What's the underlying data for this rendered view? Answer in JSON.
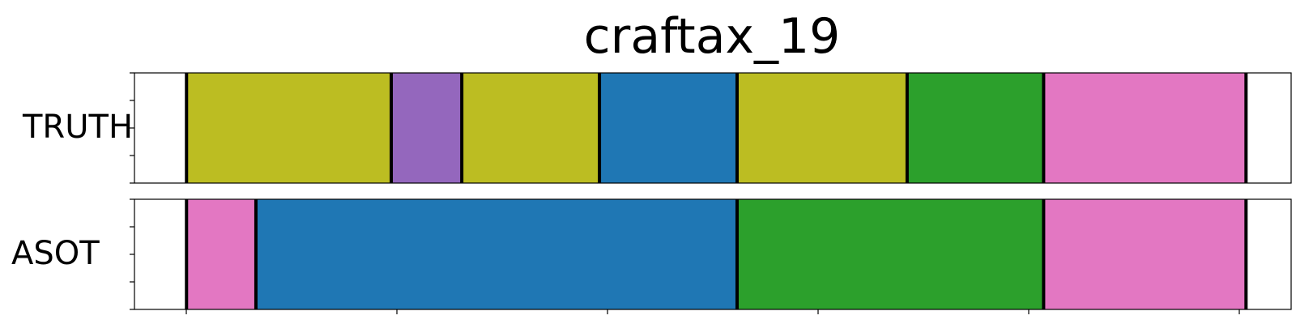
{
  "chart_data": {
    "type": "segmentation",
    "title": "craftax_19",
    "rows": [
      {
        "label": "TRUTH",
        "segments": [
          {
            "start": 0.045,
            "end": 0.222,
            "color": "#bcbd22"
          },
          {
            "start": 0.222,
            "end": 0.283,
            "color": "#9467bd"
          },
          {
            "start": 0.283,
            "end": 0.402,
            "color": "#bcbd22"
          },
          {
            "start": 0.402,
            "end": 0.521,
            "color": "#1f77b4"
          },
          {
            "start": 0.521,
            "end": 0.668,
            "color": "#bcbd22"
          },
          {
            "start": 0.668,
            "end": 0.786,
            "color": "#2ca02c"
          },
          {
            "start": 0.786,
            "end": 0.961,
            "color": "#e377c2"
          }
        ]
      },
      {
        "label": "ASOT",
        "segments": [
          {
            "start": 0.045,
            "end": 0.105,
            "color": "#e377c2"
          },
          {
            "start": 0.105,
            "end": 0.521,
            "color": "#1f77b4"
          },
          {
            "start": 0.521,
            "end": 0.786,
            "color": "#2ca02c"
          },
          {
            "start": 0.786,
            "end": 0.961,
            "color": "#e377c2"
          }
        ]
      }
    ]
  }
}
